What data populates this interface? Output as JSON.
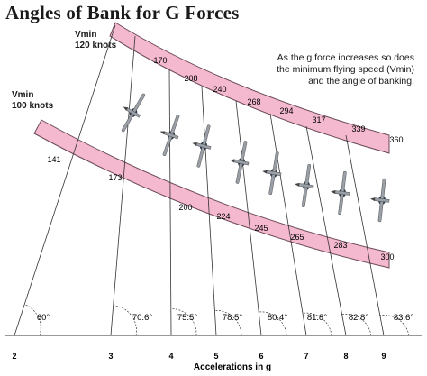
{
  "title": "Angles of Bank for G Forces",
  "vmin_upper": {
    "line1": "Vmin",
    "line2": "120 knots"
  },
  "vmin_lower": {
    "line1": "Vmin",
    "line2": "100 knots"
  },
  "note": "As the g force increases so does the minimum flying speed (Vmin) and the angle of banking.",
  "axis_title": "Accelerations in g",
  "g_ticks": [
    "2",
    "3",
    "4",
    "5",
    "6",
    "7",
    "8",
    "9"
  ],
  "angles": [
    "60°",
    "70.6°",
    "75.5°",
    "78.5°",
    "80.4°",
    "81.8°",
    "82.8°",
    "83.6°"
  ],
  "upper_speeds": [
    "170",
    "208",
    "240",
    "268",
    "294",
    "317",
    "339",
    "360"
  ],
  "lower_speeds": [
    "141",
    "173",
    "200",
    "224",
    "245",
    "265",
    "283",
    "300"
  ],
  "colors": {
    "band": "#f4b8cf",
    "band_stroke": "#6b4a58",
    "line": "#333333",
    "aircraft": "#9aa0a8"
  }
}
